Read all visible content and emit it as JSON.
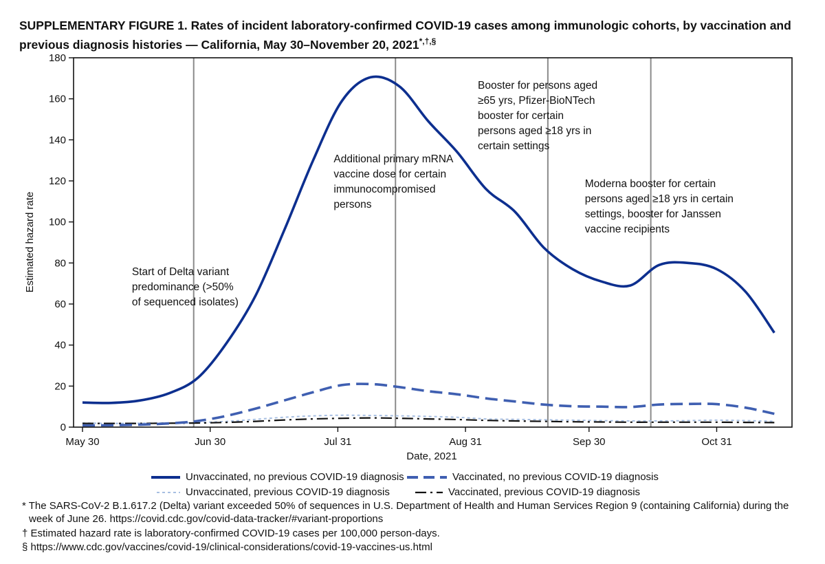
{
  "title": {
    "main": "SUPPLEMENTARY FIGURE 1. Rates of incident laboratory-confirmed COVID-19 cases among immunologic cohorts, by vaccination and previous diagnosis histories — California, May 30–November 20, 2021",
    "marks": "*,†,§"
  },
  "chart_data": {
    "type": "line",
    "xlabel": "Date, 2021",
    "ylabel": "Estimated hazard rate",
    "ylim": [
      0,
      180
    ],
    "yticks": [
      0,
      20,
      40,
      60,
      80,
      100,
      120,
      140,
      160,
      180
    ],
    "xlim": [
      0,
      174
    ],
    "xticks": [
      {
        "label": "May 30",
        "day": 0
      },
      {
        "label": "Jun 30",
        "day": 31
      },
      {
        "label": "Jul 31",
        "day": 62
      },
      {
        "label": "Aug 31",
        "day": 93
      },
      {
        "label": "Sep 30",
        "day": 123
      },
      {
        "label": "Oct 31",
        "day": 154
      }
    ],
    "x": [
      0,
      7,
      14,
      21,
      28,
      35,
      42,
      49,
      56,
      63,
      70,
      77,
      84,
      91,
      98,
      105,
      112,
      119,
      126,
      133,
      140,
      147,
      154,
      161,
      168
    ],
    "series": [
      {
        "name": "Unvaccinated, no previous COVID-19 diagnosis",
        "color": "#0d2f8f",
        "style": "solid",
        "values": [
          12,
          11.8,
          13,
          16.5,
          24,
          41,
          64,
          96,
          130,
          159,
          170.5,
          166,
          149,
          134,
          116,
          105,
          87.5,
          77,
          71,
          69,
          79,
          80,
          77,
          66,
          46
        ]
      },
      {
        "name": "Vaccinated, no previous COVID-19 diagnosis",
        "color": "#3f5fb1",
        "style": "dash",
        "values": [
          0.8,
          0.9,
          1.2,
          1.8,
          3,
          5.5,
          9,
          13,
          17,
          20.5,
          21,
          19.5,
          17.5,
          16,
          14,
          12.5,
          11,
          10.2,
          10,
          9.8,
          11,
          11.3,
          11.2,
          9.5,
          6.5
        ]
      },
      {
        "name": "Unvaccinated, previous COVID-19 diagnosis",
        "color": "#a7bfe2",
        "style": "dot",
        "values": [
          2,
          1.8,
          1.9,
          2,
          2.2,
          2.8,
          3.8,
          4.8,
          5.5,
          5.8,
          5.7,
          5.5,
          5.2,
          4.8,
          4,
          3.8,
          3.6,
          3.4,
          3.2,
          3,
          3,
          3.2,
          3.4,
          3.2,
          2.8
        ]
      },
      {
        "name": "Vaccinated, previous COVID-19 diagnosis",
        "color": "#111111",
        "style": "dashdot",
        "values": [
          1.8,
          1.8,
          1.8,
          1.9,
          2,
          2.3,
          2.8,
          3.5,
          4,
          4.3,
          4.5,
          4.3,
          4,
          3.7,
          3.3,
          3,
          2.8,
          2.6,
          2.5,
          2.4,
          2.4,
          2.4,
          2.4,
          2.3,
          2.2
        ]
      }
    ],
    "vlines": [
      {
        "day": 27,
        "annotation": [
          "Start of Delta variant",
          "predominance (>50%",
          "of sequenced isolates)"
        ]
      },
      {
        "day": 76,
        "annotation": [
          "Additional primary mRNA",
          "vaccine dose for certain",
          "immunocompromised",
          "persons"
        ]
      },
      {
        "day": 113,
        "annotation": [
          "Booster for persons aged",
          "≥65 yrs, Pfizer-BioNTech",
          "booster for certain",
          "persons aged ≥18 yrs in",
          "certain settings"
        ]
      },
      {
        "day": 138,
        "annotation": [
          "Moderna booster for certain",
          "persons aged ≥18 yrs in certain",
          "settings, booster for Janssen",
          "vaccine recipients"
        ]
      }
    ]
  },
  "footnotes": {
    "star_line1": "* The SARS-CoV-2 B.1.617.2 (Delta) variant exceeded 50% of sequences in U.S. Department of Health and Human Services Region 9 (containing California) during the",
    "star_line2": "week of June 26. https://covid.cdc.gov/covid-data-tracker/#variant-proportions",
    "dagger": "† Estimated hazard rate is laboratory-confirmed COVID-19 cases per 100,000 person-days.",
    "section": "§ https://www.cdc.gov/vaccines/covid-19/clinical-considerations/covid-19-vaccines-us.html"
  }
}
